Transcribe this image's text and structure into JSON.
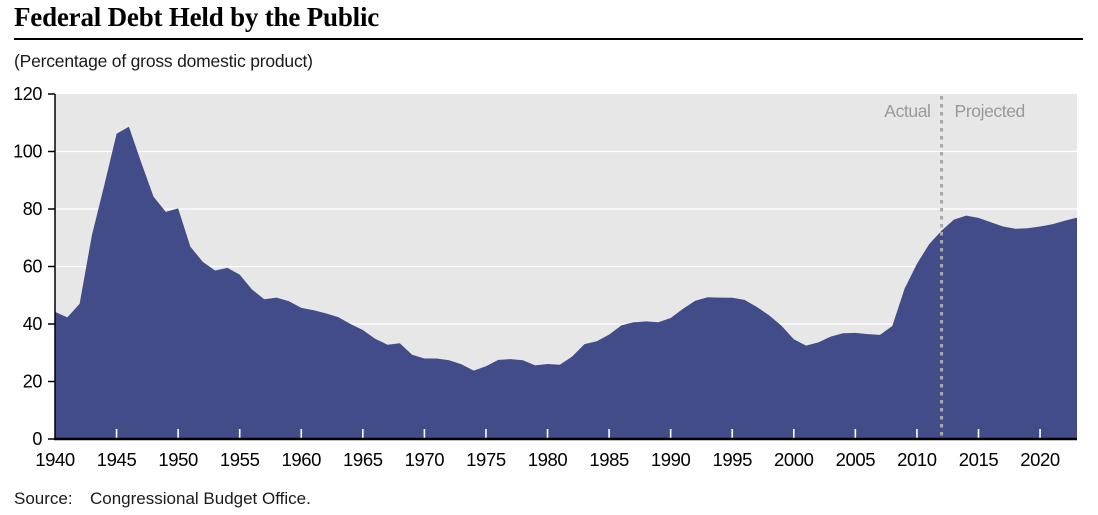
{
  "header": {
    "title": "Federal Debt Held by the Public",
    "subtitle": "(Percentage of gross domestic product)"
  },
  "chart_data": {
    "type": "area",
    "title": "Federal Debt Held by the Public",
    "unit_note": "(Percentage of gross domestic product)",
    "xlabel": "",
    "ylabel": "",
    "xlim": [
      1940,
      2023
    ],
    "ylim": [
      0,
      120
    ],
    "y_ticks": [
      0,
      20,
      40,
      60,
      80,
      100,
      120
    ],
    "x_ticks": [
      1940,
      1945,
      1950,
      1955,
      1960,
      1965,
      1970,
      1975,
      1980,
      1985,
      1990,
      1995,
      2000,
      2005,
      2010,
      2015,
      2020
    ],
    "grid": "horizontal-white-on-gray-panel",
    "legend_position": "none",
    "annotations": {
      "actual_label": "Actual",
      "projected_label": "Projected",
      "divider_year": 2012
    },
    "series": [
      {
        "name": "Actual",
        "x": [
          1940,
          1941,
          1942,
          1943,
          1944,
          1945,
          1946,
          1947,
          1948,
          1949,
          1950,
          1951,
          1952,
          1953,
          1954,
          1955,
          1956,
          1957,
          1958,
          1959,
          1960,
          1961,
          1962,
          1963,
          1964,
          1965,
          1966,
          1967,
          1968,
          1969,
          1970,
          1971,
          1972,
          1973,
          1974,
          1975,
          1976,
          1977,
          1978,
          1979,
          1980,
          1981,
          1982,
          1983,
          1984,
          1985,
          1986,
          1987,
          1988,
          1989,
          1990,
          1991,
          1992,
          1993,
          1994,
          1995,
          1996,
          1997,
          1998,
          1999,
          2000,
          2001,
          2002,
          2003,
          2004,
          2005,
          2006,
          2007,
          2008,
          2009,
          2010,
          2011,
          2012
        ],
        "values": [
          44.2,
          42.3,
          47.0,
          70.9,
          88.3,
          106.2,
          108.6,
          96.2,
          84.3,
          79.0,
          80.2,
          66.9,
          61.6,
          58.6,
          59.5,
          57.2,
          52.0,
          48.6,
          49.2,
          47.9,
          45.6,
          44.8,
          43.7,
          42.4,
          40.0,
          37.9,
          34.9,
          32.8,
          33.3,
          29.3,
          28.0,
          28.0,
          27.4,
          26.0,
          23.8,
          25.3,
          27.5,
          27.8,
          27.4,
          25.6,
          26.1,
          25.8,
          28.7,
          33.0,
          34.0,
          36.3,
          39.5,
          40.6,
          40.9,
          40.6,
          42.1,
          45.3,
          48.1,
          49.3,
          49.2,
          49.1,
          48.4,
          45.9,
          43.0,
          39.4,
          34.7,
          32.5,
          33.6,
          35.6,
          36.8,
          36.9,
          36.5,
          36.2,
          39.3,
          52.3,
          60.9,
          67.8,
          72.5
        ]
      },
      {
        "name": "Projected",
        "x": [
          2012,
          2013,
          2014,
          2015,
          2016,
          2017,
          2018,
          2019,
          2020,
          2021,
          2022,
          2023
        ],
        "values": [
          72.5,
          76.3,
          77.7,
          76.9,
          75.4,
          73.9,
          73.1,
          73.3,
          73.9,
          74.7,
          75.9,
          77.0
        ]
      }
    ],
    "colors": {
      "area_fill": "#424c88",
      "panel_bg": "#e7e7e7",
      "gridline": "#ffffff",
      "divider": "#a9a9a9",
      "annotation_text": "#999999",
      "axis": "#000000",
      "x_tick_mark": "#ffffff"
    }
  },
  "footer": {
    "source_label": "Source:",
    "source_text": "Congressional Budget Office."
  }
}
